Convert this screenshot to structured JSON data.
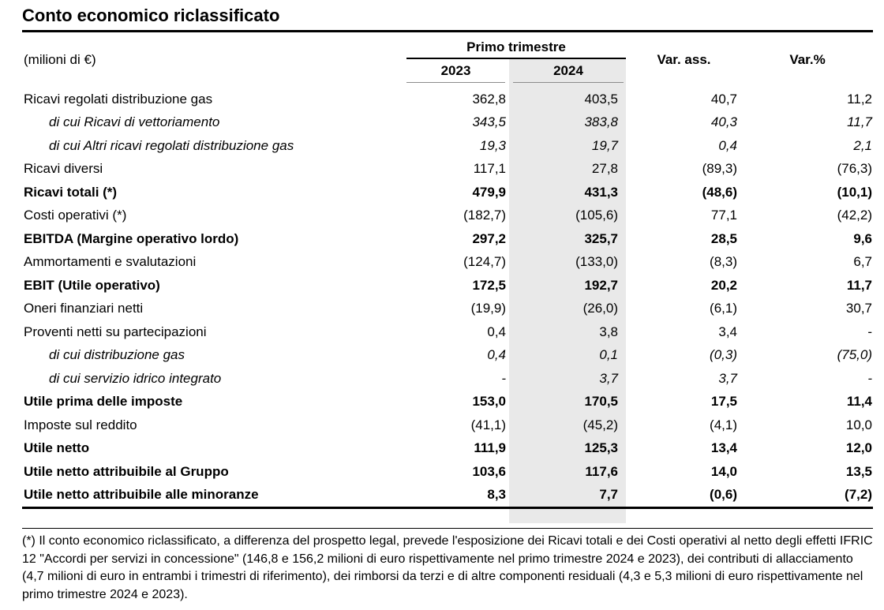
{
  "title": "Conto economico riclassificato",
  "table": {
    "unit_label": "(milioni di €)",
    "group_header": "Primo trimestre",
    "columns": [
      "2023",
      "2024",
      "Var. ass.",
      "Var.%"
    ],
    "rows": [
      {
        "label": "Ricavi regolati distribuzione gas",
        "y2023": "362,8",
        "y2024": "403,5",
        "var_ass": "40,7",
        "var_pct": "11,2"
      },
      {
        "label": "di cui Ricavi di vettoriamento",
        "y2023": "343,5",
        "y2024": "383,8",
        "var_ass": "40,3",
        "var_pct": "11,7"
      },
      {
        "label": "di cui Altri ricavi regolati distribuzione gas",
        "y2023": "19,3",
        "y2024": "19,7",
        "var_ass": "0,4",
        "var_pct": "2,1"
      },
      {
        "label": "Ricavi diversi",
        "y2023": "117,1",
        "y2024": "27,8",
        "var_ass": "(89,3)",
        "var_pct": "(76,3)"
      },
      {
        "label": "Ricavi totali (*)",
        "y2023": "479,9",
        "y2024": "431,3",
        "var_ass": "(48,6)",
        "var_pct": "(10,1)"
      },
      {
        "label": "Costi operativi (*)",
        "y2023": "(182,7)",
        "y2024": "(105,6)",
        "var_ass": "77,1",
        "var_pct": "(42,2)"
      },
      {
        "label": "EBITDA (Margine operativo lordo)",
        "y2023": "297,2",
        "y2024": "325,7",
        "var_ass": "28,5",
        "var_pct": "9,6"
      },
      {
        "label": "Ammortamenti e svalutazioni",
        "y2023": "(124,7)",
        "y2024": "(133,0)",
        "var_ass": "(8,3)",
        "var_pct": "6,7"
      },
      {
        "label": "EBIT (Utile operativo)",
        "y2023": "172,5",
        "y2024": "192,7",
        "var_ass": "20,2",
        "var_pct": "11,7"
      },
      {
        "label": "Oneri finanziari netti",
        "y2023": "(19,9)",
        "y2024": "(26,0)",
        "var_ass": "(6,1)",
        "var_pct": "30,7"
      },
      {
        "label": "Proventi netti su partecipazioni",
        "y2023": "0,4",
        "y2024": "3,8",
        "var_ass": "3,4",
        "var_pct": "-"
      },
      {
        "label": "di cui distribuzione gas",
        "y2023": "0,4",
        "y2024": "0,1",
        "var_ass": "(0,3)",
        "var_pct": "(75,0)"
      },
      {
        "label": "di cui servizio idrico integrato",
        "y2023": "-",
        "y2024": "3,7",
        "var_ass": "3,7",
        "var_pct": "-"
      },
      {
        "label": "Utile prima delle imposte",
        "y2023": "153,0",
        "y2024": "170,5",
        "var_ass": "17,5",
        "var_pct": "11,4"
      },
      {
        "label": "Imposte sul reddito",
        "y2023": "(41,1)",
        "y2024": "(45,2)",
        "var_ass": "(4,1)",
        "var_pct": "10,0"
      },
      {
        "label": "Utile netto",
        "y2023": "111,9",
        "y2024": "125,3",
        "var_ass": "13,4",
        "var_pct": "12,0"
      },
      {
        "label": "Utile netto attribuibile al Gruppo",
        "y2023": "103,6",
        "y2024": "117,6",
        "var_ass": "14,0",
        "var_pct": "13,5"
      },
      {
        "label": "Utile netto attribuibile alle minoranze",
        "y2023": "8,3",
        "y2024": "7,7",
        "var_ass": "(0,6)",
        "var_pct": "(7,2)"
      }
    ]
  },
  "footnote": "(*) Il conto economico riclassificato, a differenza del prospetto legal, prevede l'esposizione dei Ricavi totali e dei Costi operativi al netto degli effetti IFRIC 12 \"Accordi per servizi in concessione\" (146,8 e 156,2 milioni di euro rispettivamente nel primo trimestre 2024 e 2023), dei contributi di allacciamento (4,7 milioni di euro in entrambi i trimestri di riferimento), dei rimborsi da terzi e di altre componenti residuali (4,3 e 5,3 milioni di euro rispettivamente nel primo trimestre 2024 e 2023).",
  "colors": {
    "column_highlight_2024": "#e9e9e9",
    "text": "#000000",
    "rule": "#000000"
  }
}
